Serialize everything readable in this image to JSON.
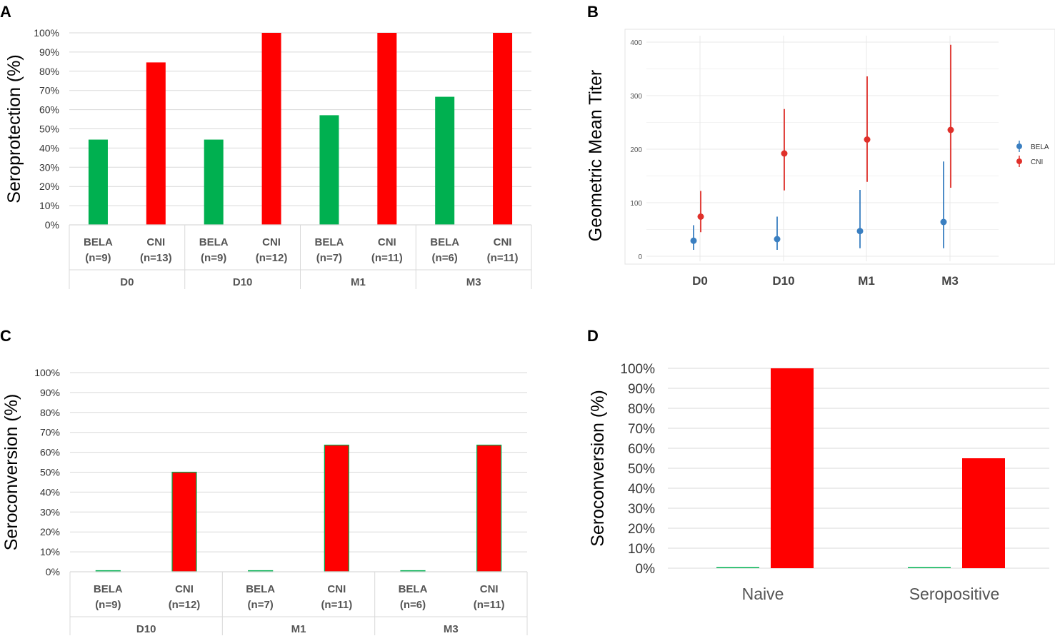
{
  "colors": {
    "bela": "#00b050",
    "cni": "#ff0000",
    "bela_b": "#3a7fc1",
    "cni_b": "#e0302a",
    "grid": "#d9d9d9"
  },
  "chart_data": [
    {
      "panel": "A",
      "type": "bar",
      "ylabel": "Seroprotection (%)",
      "ylim": [
        0,
        100
      ],
      "yticks": [
        "0%",
        "10%",
        "20%",
        "30%",
        "40%",
        "50%",
        "60%",
        "70%",
        "80%",
        "90%",
        "100%"
      ],
      "groups": [
        {
          "name": "D0",
          "bars": [
            {
              "label": "BELA",
              "n": "(n=9)",
              "value": 44.4,
              "series": "BELA"
            },
            {
              "label": "CNI",
              "n": "(n=13)",
              "value": 84.6,
              "series": "CNI"
            }
          ]
        },
        {
          "name": "D10",
          "bars": [
            {
              "label": "BELA",
              "n": "(n=9)",
              "value": 44.4,
              "series": "BELA"
            },
            {
              "label": "CNI",
              "n": "(n=12)",
              "value": 100,
              "series": "CNI"
            }
          ]
        },
        {
          "name": "M1",
          "bars": [
            {
              "label": "BELA",
              "n": "(n=7)",
              "value": 57.1,
              "series": "BELA"
            },
            {
              "label": "CNI",
              "n": "(n=11)",
              "value": 100,
              "series": "CNI"
            }
          ]
        },
        {
          "name": "M3",
          "bars": [
            {
              "label": "BELA",
              "n": "(n=6)",
              "value": 66.7,
              "series": "BELA"
            },
            {
              "label": "CNI",
              "n": "(n=11)",
              "value": 100,
              "series": "CNI"
            }
          ]
        }
      ]
    },
    {
      "panel": "B",
      "type": "scatter",
      "ylabel": "Geometric Mean Titer",
      "ylim": [
        0,
        400
      ],
      "yticks": [
        "0",
        "100",
        "200",
        "300",
        "400"
      ],
      "categories": [
        "D0",
        "D10",
        "M1",
        "M3"
      ],
      "legend": [
        "BELA",
        "CNI"
      ],
      "series": [
        {
          "name": "BELA",
          "values": [
            29,
            32,
            47,
            64
          ],
          "lower": [
            12,
            12,
            15,
            15
          ],
          "upper": [
            58,
            74,
            124,
            177
          ]
        },
        {
          "name": "CNI",
          "values": [
            74,
            192,
            218,
            236
          ],
          "lower": [
            45,
            123,
            139,
            128
          ],
          "upper": [
            122,
            275,
            336,
            395
          ]
        }
      ]
    },
    {
      "panel": "C",
      "type": "bar",
      "ylabel": "Seroconversion (%)",
      "ylim": [
        0,
        100
      ],
      "yticks": [
        "0%",
        "10%",
        "20%",
        "30%",
        "40%",
        "50%",
        "60%",
        "70%",
        "80%",
        "90%",
        "100%"
      ],
      "groups": [
        {
          "name": "D10",
          "bars": [
            {
              "label": "BELA",
              "n": "(n=9)",
              "value": 0,
              "series": "BELA"
            },
            {
              "label": "CNI",
              "n": "(n=12)",
              "value": 50,
              "series": "CNI"
            }
          ]
        },
        {
          "name": "M1",
          "bars": [
            {
              "label": "BELA",
              "n": "(n=7)",
              "value": 0,
              "series": "BELA"
            },
            {
              "label": "CNI",
              "n": "(n=11)",
              "value": 63.6,
              "series": "CNI"
            }
          ]
        },
        {
          "name": "M3",
          "bars": [
            {
              "label": "BELA",
              "n": "(n=6)",
              "value": 0,
              "series": "BELA"
            },
            {
              "label": "CNI",
              "n": "(n=11)",
              "value": 63.6,
              "series": "CNI"
            }
          ]
        }
      ]
    },
    {
      "panel": "D",
      "type": "bar",
      "ylabel": "Seroconversion (%)",
      "ylim": [
        0,
        100
      ],
      "yticks": [
        "0%",
        "10%",
        "20%",
        "30%",
        "40%",
        "50%",
        "60%",
        "70%",
        "80%",
        "90%",
        "100%"
      ],
      "categories": [
        "Naive",
        "Seropositive"
      ],
      "series": [
        {
          "name": "BELA",
          "values": [
            0,
            0
          ]
        },
        {
          "name": "CNI",
          "values": [
            100,
            55
          ]
        }
      ]
    }
  ]
}
